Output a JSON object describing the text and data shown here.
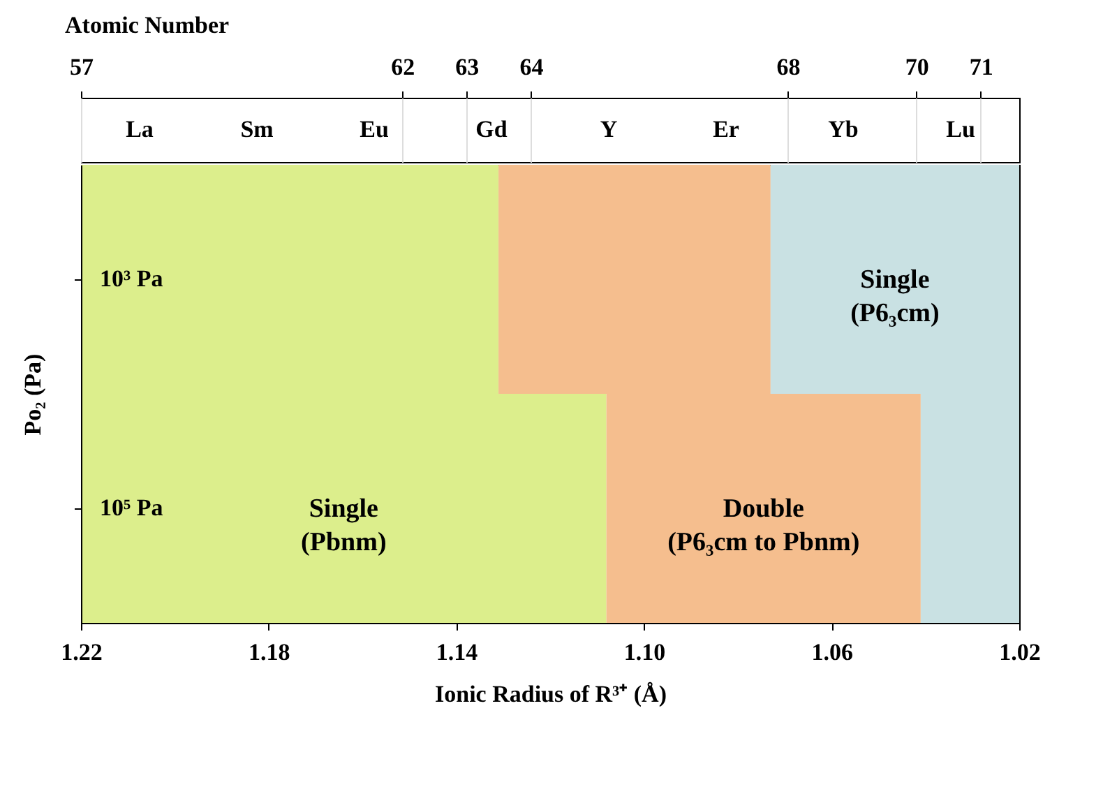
{
  "chart_data": {
    "type": "bar",
    "orientation": "horizontal",
    "categories": [
      "10³ Pa",
      "10⁵ Pa"
    ],
    "series": [
      {
        "name": "Single (Pbnm)",
        "color": "#dcee8c",
        "base": [
          1.131,
          1.108
        ],
        "values": [
          0.089,
          0.112
        ]
      },
      {
        "name": "Double (P6₃cm to Pbnm)",
        "color": "#f5be8e",
        "base": [
          1.073,
          1.041
        ],
        "values": [
          0.058,
          0.067
        ]
      },
      {
        "name": "Single (P6₃cm)",
        "color": "#c9e1e3",
        "base": [
          1.02,
          1.02
        ],
        "values": [
          0.053,
          0.021
        ]
      }
    ],
    "xlim": [
      1.22,
      1.02
    ],
    "xticks": [
      1.22,
      1.18,
      1.14,
      {
        "value": 1.1,
        "label": "1.10"
      },
      1.06,
      1.02
    ],
    "x2lim": [
      57,
      71.6
    ],
    "x2ticks": [
      57,
      62,
      63,
      64,
      68,
      70,
      71
    ],
    "annotations": [
      "La",
      "Sm",
      "Eu",
      "Gd",
      "Y",
      "Er",
      "Yb",
      "Lu"
    ],
    "xlabel": "Ionic Radius of R³⁺ (Å)",
    "x2label": "Atomic Number",
    "ylabel": "Po₂ (Pa)",
    "grid": false
  }
}
